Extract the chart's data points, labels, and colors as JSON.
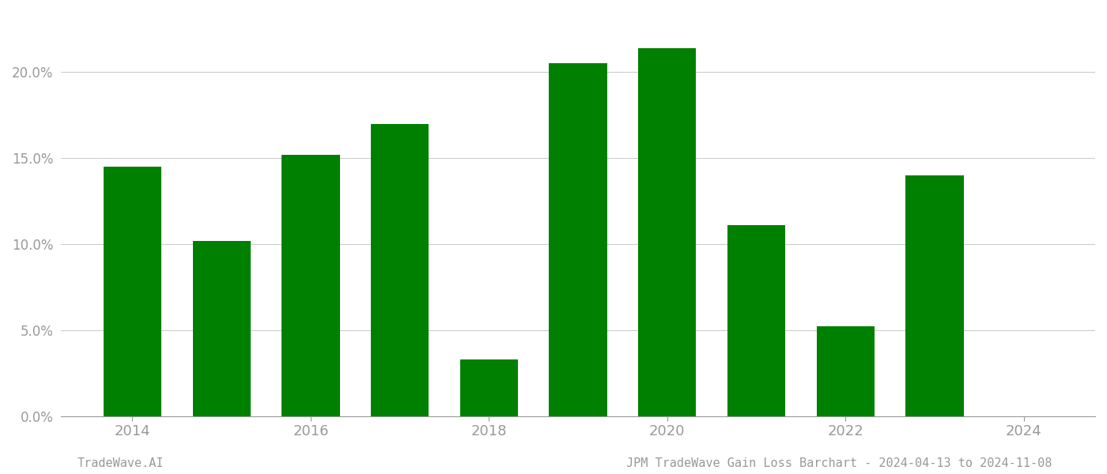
{
  "years": [
    2014,
    2015,
    2016,
    2017,
    2018,
    2019,
    2020,
    2021,
    2022,
    2023
  ],
  "values": [
    0.145,
    0.102,
    0.152,
    0.17,
    0.033,
    0.205,
    0.214,
    0.111,
    0.052,
    0.14
  ],
  "bar_color": "#008000",
  "background_color": "#ffffff",
  "ylim": [
    0,
    0.235
  ],
  "yticks": [
    0.0,
    0.05,
    0.1,
    0.15,
    0.2
  ],
  "ytick_labels": [
    "0.0%",
    "5.0%",
    "10.0%",
    "15.0%",
    "20.0%"
  ],
  "xtick_positions": [
    2014,
    2016,
    2018,
    2020,
    2022,
    2024
  ],
  "xtick_labels": [
    "2014",
    "2016",
    "2018",
    "2020",
    "2022",
    "2024"
  ],
  "footer_left": "TradeWave.AI",
  "footer_right": "JPM TradeWave Gain Loss Barchart - 2024-04-13 to 2024-11-08",
  "grid_color": "#cccccc",
  "tick_color": "#999999",
  "footer_fontsize": 11,
  "bar_width": 0.65,
  "xlim": [
    2013.2,
    2024.8
  ]
}
